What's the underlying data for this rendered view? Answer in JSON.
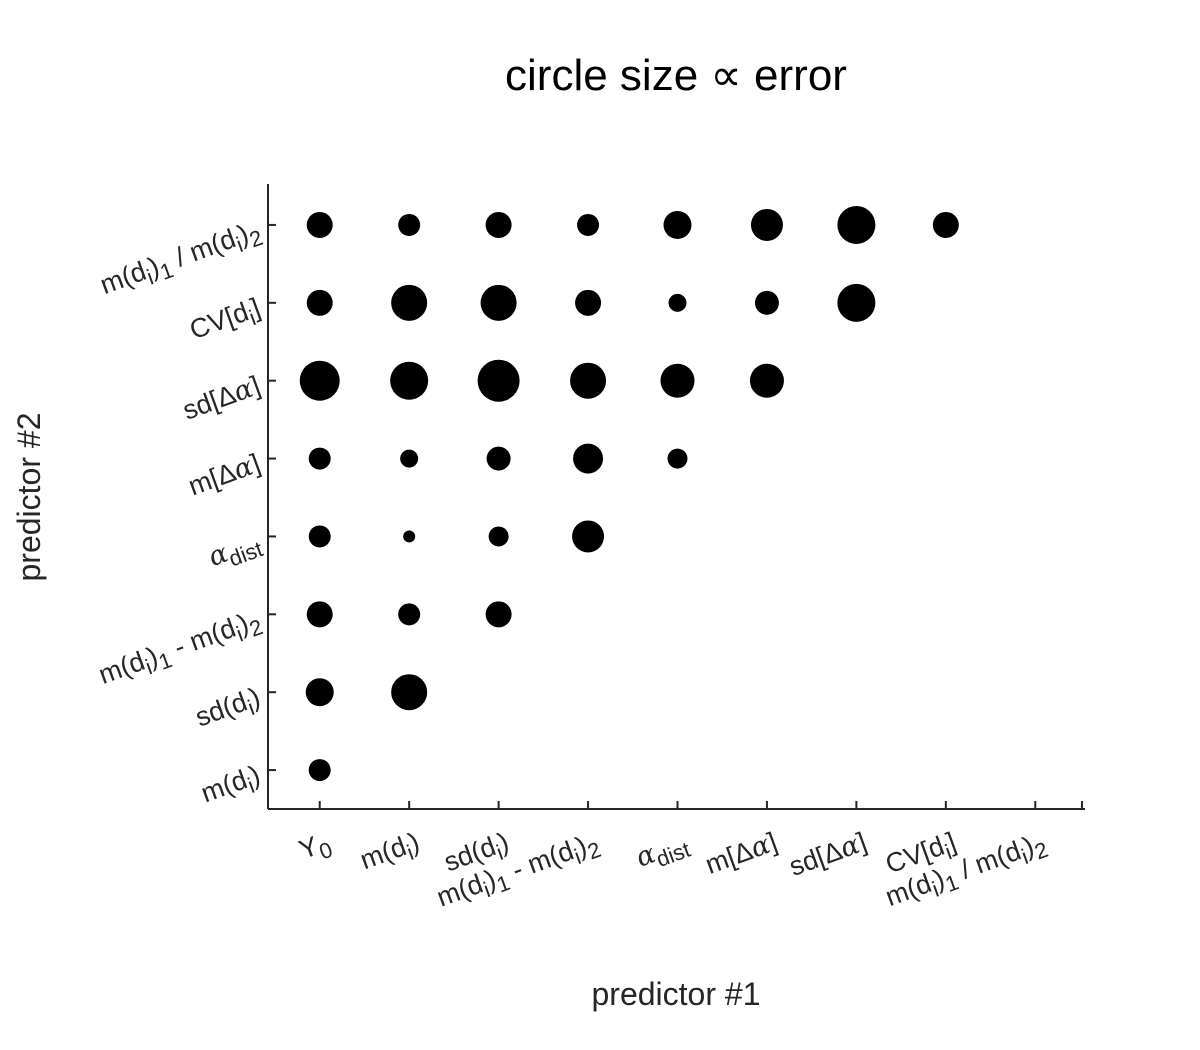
{
  "chart_data": {
    "type": "scatter",
    "title": "circle size ∝ error",
    "xlabel": "predictor #1",
    "ylabel": "predictor #2",
    "size_encodes": "error",
    "xlim": [
      0.5,
      9.5
    ],
    "ylim": [
      0.5,
      8.5
    ],
    "grid": false,
    "x_tick_labels": [
      {
        "main": "Y",
        "sub": "0"
      },
      {
        "main": "m(d",
        "sub": "i",
        "tail": ")"
      },
      {
        "main": "sd(d",
        "sub": "i",
        "tail": ")"
      },
      {
        "main": "m(d",
        "sub": "i",
        "tail": ")",
        "sub2": "1",
        "mid": " - m(d",
        "sub3": "i",
        "tail2": ")",
        "sub4": "2"
      },
      {
        "greek": "α",
        "sub": "dist"
      },
      {
        "main": "m[Δ",
        "greek": "α",
        "tail": "]"
      },
      {
        "main": "sd[Δ",
        "greek": "α",
        "tail": "]"
      },
      {
        "main": "CV[d",
        "sub": "i",
        "tail": "]"
      },
      {
        "main": "m(d",
        "sub": "i",
        "tail": ")",
        "sub2": "1",
        "mid": " / m(d",
        "sub3": "i",
        "tail2": ")",
        "sub4": "2"
      }
    ],
    "y_tick_labels": [
      {
        "main": "m(d",
        "sub": "i",
        "tail": ")"
      },
      {
        "main": "sd(d",
        "sub": "i",
        "tail": ")"
      },
      {
        "main": "m(d",
        "sub": "i",
        "tail": ")",
        "sub2": "1",
        "mid": " - m(d",
        "sub3": "i",
        "tail2": ")",
        "sub4": "2"
      },
      {
        "greek": "α",
        "sub": "dist"
      },
      {
        "main": "m[Δ",
        "greek": "α",
        "tail": "]"
      },
      {
        "main": "sd[Δ",
        "greek": "α",
        "tail": "]"
      },
      {
        "main": "CV[d",
        "sub": "i",
        "tail": "]"
      },
      {
        "main": "m(d",
        "sub": "i",
        "tail": ")",
        "sub2": "1",
        "mid": " / m(d",
        "sub3": "i",
        "tail2": ")",
        "sub4": "2"
      }
    ],
    "points": [
      {
        "x": 1,
        "y": 1,
        "size": 11
      },
      {
        "x": 1,
        "y": 2,
        "size": 14
      },
      {
        "x": 2,
        "y": 2,
        "size": 18
      },
      {
        "x": 1,
        "y": 3,
        "size": 13
      },
      {
        "x": 2,
        "y": 3,
        "size": 11
      },
      {
        "x": 3,
        "y": 3,
        "size": 13
      },
      {
        "x": 1,
        "y": 4,
        "size": 11
      },
      {
        "x": 2,
        "y": 4,
        "size": 6
      },
      {
        "x": 3,
        "y": 4,
        "size": 10
      },
      {
        "x": 4,
        "y": 4,
        "size": 16
      },
      {
        "x": 1,
        "y": 5,
        "size": 11
      },
      {
        "x": 2,
        "y": 5,
        "size": 9
      },
      {
        "x": 3,
        "y": 5,
        "size": 12
      },
      {
        "x": 4,
        "y": 5,
        "size": 15
      },
      {
        "x": 5,
        "y": 5,
        "size": 10
      },
      {
        "x": 1,
        "y": 6,
        "size": 20
      },
      {
        "x": 2,
        "y": 6,
        "size": 19
      },
      {
        "x": 3,
        "y": 6,
        "size": 21
      },
      {
        "x": 4,
        "y": 6,
        "size": 18
      },
      {
        "x": 5,
        "y": 6,
        "size": 17
      },
      {
        "x": 6,
        "y": 6,
        "size": 17
      },
      {
        "x": 1,
        "y": 7,
        "size": 13
      },
      {
        "x": 2,
        "y": 7,
        "size": 18
      },
      {
        "x": 3,
        "y": 7,
        "size": 18
      },
      {
        "x": 4,
        "y": 7,
        "size": 13
      },
      {
        "x": 5,
        "y": 7,
        "size": 9
      },
      {
        "x": 6,
        "y": 7,
        "size": 12
      },
      {
        "x": 7,
        "y": 7,
        "size": 19
      },
      {
        "x": 1,
        "y": 8,
        "size": 13
      },
      {
        "x": 2,
        "y": 8,
        "size": 11
      },
      {
        "x": 3,
        "y": 8,
        "size": 13
      },
      {
        "x": 4,
        "y": 8,
        "size": 11
      },
      {
        "x": 5,
        "y": 8,
        "size": 14
      },
      {
        "x": 6,
        "y": 8,
        "size": 16
      },
      {
        "x": 7,
        "y": 8,
        "size": 19
      },
      {
        "x": 8,
        "y": 8,
        "size": 13
      }
    ]
  }
}
